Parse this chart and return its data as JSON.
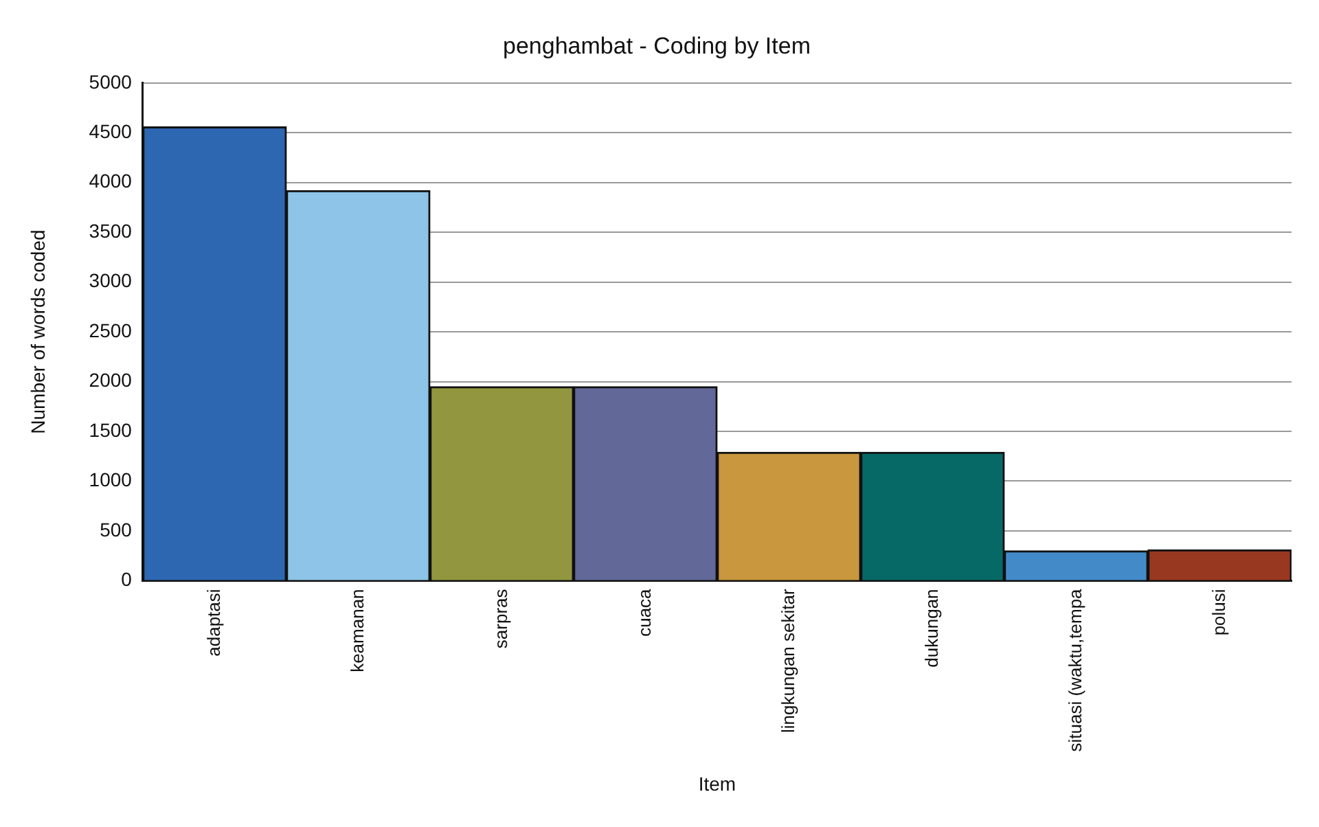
{
  "chart_data": {
    "type": "bar",
    "title": "penghambat - Coding by Item",
    "xlabel": "Item",
    "ylabel": "Number of words coded",
    "categories": [
      "adaptasi",
      "keamanan",
      "sarpras",
      "cuaca",
      "lingkungan sekitar",
      "dukungan",
      "situasi (waktu,tempa",
      "polusi"
    ],
    "values": [
      4560,
      3920,
      1950,
      1950,
      1290,
      1290,
      300,
      310
    ],
    "colors": [
      "#2e67b1",
      "#8dc4e8",
      "#92973f",
      "#626898",
      "#c8973e",
      "#066966",
      "#438ac9",
      "#993820"
    ],
    "ylim": [
      0,
      5000
    ],
    "yticks": [
      0,
      500,
      1000,
      1500,
      2000,
      2500,
      3000,
      3500,
      4000,
      4500,
      5000
    ],
    "grid": "y",
    "legend": false
  }
}
